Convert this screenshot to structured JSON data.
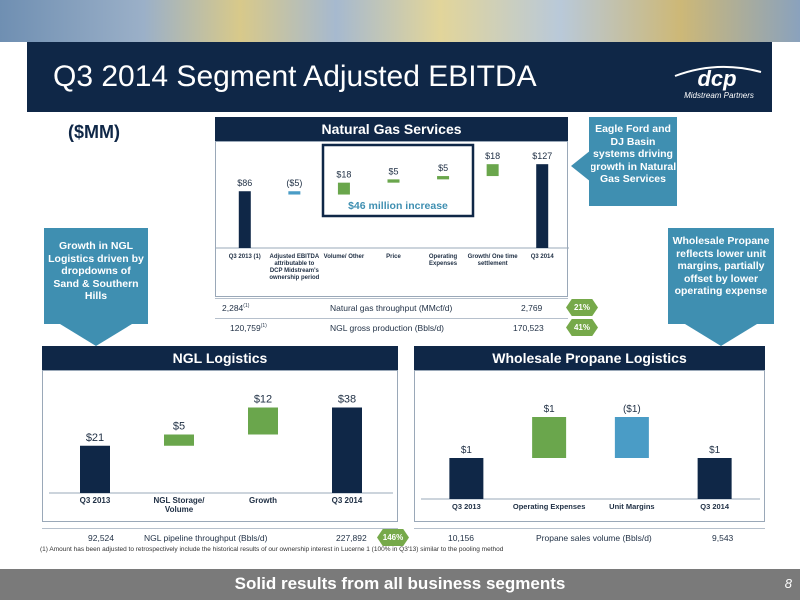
{
  "header": {
    "title": "Q3 2014 Segment Adjusted EBITDA",
    "logo_text": "dcp",
    "logo_subtitle": "Midstream Partners"
  },
  "units_label": "($MM)",
  "sections": {
    "natural_gas": "Natural Gas Services",
    "ngl": "NGL Logistics",
    "propane": "Wholesale Propane Logistics"
  },
  "callouts": {
    "eagle_ford": "Eagle Ford and DJ Basin systems driving growth in Natural Gas Services",
    "ngl_growth": "Growth in NGL Logistics driven by dropdowns of Sand & Southern Hills",
    "propane": "Wholesale Propane reflects lower unit margins, partially offset by lower operating expense"
  },
  "ng_increase_label": "$46 million increase",
  "ng_metrics": [
    {
      "before": "2,284",
      "before_sup": "(1)",
      "label": "Natural gas throughput (MMcf/d)",
      "after": "2,769",
      "change": "21%"
    },
    {
      "before": "120,759",
      "before_sup": "(1)",
      "label": "NGL gross production (Bbls/d)",
      "after": "170,523",
      "change": "41%"
    }
  ],
  "ngl_metric": {
    "before": "92,524",
    "label": "NGL pipeline throughput (Bbls/d)",
    "after": "227,892",
    "change": "146%"
  },
  "propane_metric": {
    "before": "10,156",
    "label": "Propane sales volume (Bbls/d)",
    "after": "9,543"
  },
  "footnote": "(1)   Amount has been adjusted to retrospectively include the historical results of our ownership interest in Lucerne 1 (100% in Q3'13) similar to the pooling method",
  "footer": {
    "text": "Solid results from all business segments",
    "page": "8"
  },
  "colors": {
    "navy": "#0f2747",
    "green": "#6aa64c",
    "light_blue": "#4a9cc6",
    "teal": "#3f8fb1"
  },
  "chart_data": [
    {
      "type": "bar",
      "subtype": "waterfall",
      "title": "Natural Gas Services",
      "categories": [
        "Q3 2013 (1)",
        "Adjusted EBITDA attributable to DCP Midstream's ownership period",
        "Volume/ Other",
        "Price",
        "Operating Expenses",
        "Growth/ One time settlement",
        "Q3 2014"
      ],
      "values": [
        86,
        -5,
        18,
        5,
        5,
        18,
        127
      ],
      "labels": [
        "$86",
        "($5)",
        "$18",
        "$5",
        "$5",
        "$18",
        "$127"
      ],
      "kinds": [
        "total",
        "delta",
        "delta",
        "delta",
        "delta",
        "delta",
        "total"
      ]
    },
    {
      "type": "bar",
      "subtype": "waterfall",
      "title": "NGL Logistics",
      "categories": [
        "Q3 2013",
        "NGL Storage/ Volume",
        "Growth",
        "Q3 2014"
      ],
      "values": [
        21,
        5,
        12,
        38
      ],
      "labels": [
        "$21",
        "$5",
        "$12",
        "$38"
      ],
      "kinds": [
        "total",
        "delta",
        "delta",
        "total"
      ]
    },
    {
      "type": "bar",
      "subtype": "waterfall",
      "title": "Wholesale Propane Logistics",
      "categories": [
        "Q3 2013",
        "Operating Expenses",
        "Unit Margins",
        "Q3 2014"
      ],
      "values": [
        1,
        1,
        -1,
        1
      ],
      "labels": [
        "$1",
        "$1",
        "($1)",
        "$1"
      ],
      "kinds": [
        "total",
        "delta",
        "delta",
        "total"
      ]
    }
  ]
}
